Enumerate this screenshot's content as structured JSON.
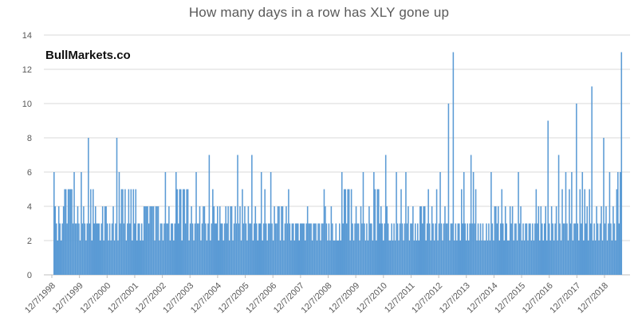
{
  "watermark": "BullMarkets.co",
  "colors": {
    "bar": "#5B9BD5",
    "gridline": "#D9D9D9",
    "axis_line": "#BFBFBF",
    "tick_mark": "#BFBFBF",
    "label_text": "#595959",
    "title_text": "#595959",
    "watermark_text": "#111111",
    "background": "#FFFFFF"
  },
  "chart_data": {
    "type": "bar",
    "title": "How many days in a row has XLY gone up",
    "xlabel": "",
    "ylabel": "",
    "ylim": [
      0,
      14
    ],
    "yticks": [
      0,
      2,
      4,
      6,
      8,
      10,
      12,
      14
    ],
    "grid": "horizontal",
    "legend": "none",
    "x_label_rotation_deg": 45,
    "x_tick_labels": [
      "12/7/1998",
      "12/7/1999",
      "12/7/2000",
      "12/7/2001",
      "12/7/2002",
      "12/7/2003",
      "12/7/2004",
      "12/7/2005",
      "12/7/2006",
      "12/7/2007",
      "12/7/2008",
      "12/7/2009",
      "12/7/2010",
      "12/7/2011",
      "12/7/2012",
      "12/7/2013",
      "12/7/2014",
      "12/7/2015",
      "12/7/2016",
      "12/7/2017",
      "12/7/2018"
    ],
    "notable_streaks": [
      {
        "approx_x": "early 2000",
        "days": 8
      },
      {
        "approx_x": "early 2001",
        "days": 8
      },
      {
        "approx_x": "late 2012",
        "days": 10
      },
      {
        "approx_x": "late 2012 / early 2013",
        "days": 13
      },
      {
        "approx_x": "2016",
        "days": 9
      },
      {
        "approx_x": "mid 2017",
        "days": 10
      },
      {
        "approx_x": "late 2017",
        "days": 11
      },
      {
        "approx_x": "early 2018",
        "days": 8
      },
      {
        "approx_x": "right edge of chart",
        "days": 13
      }
    ],
    "values": [
      6,
      4,
      3,
      2,
      4,
      3,
      2,
      3,
      4,
      5,
      5,
      3,
      5,
      5,
      5,
      5,
      3,
      6,
      3,
      3,
      4,
      3,
      2,
      6,
      3,
      4,
      3,
      2,
      3,
      8,
      3,
      5,
      2,
      5,
      3,
      4,
      3,
      3,
      3,
      2,
      3,
      4,
      2,
      4,
      4,
      3,
      2,
      3,
      2,
      3,
      4,
      2,
      3,
      8,
      2,
      6,
      3,
      5,
      5,
      3,
      5,
      2,
      3,
      5,
      3,
      5,
      2,
      5,
      3,
      5,
      2,
      3,
      3,
      2,
      3,
      2,
      4,
      4,
      4,
      4,
      3,
      4,
      4,
      4,
      4,
      2,
      4,
      4,
      4,
      2,
      3,
      3,
      2,
      3,
      6,
      3,
      3,
      4,
      2,
      3,
      3,
      2,
      3,
      6,
      5,
      3,
      5,
      5,
      2,
      5,
      5,
      3,
      5,
      5,
      2,
      3,
      4,
      3,
      2,
      3,
      6,
      3,
      3,
      4,
      2,
      3,
      4,
      4,
      3,
      2,
      3,
      7,
      2,
      3,
      5,
      4,
      3,
      3,
      4,
      2,
      4,
      3,
      3,
      2,
      3,
      4,
      3,
      4,
      2,
      4,
      4,
      2,
      3,
      4,
      3,
      7,
      3,
      4,
      2,
      5,
      3,
      4,
      3,
      2,
      4,
      3,
      3,
      7,
      2,
      3,
      4,
      3,
      2,
      3,
      3,
      6,
      2,
      3,
      5,
      3,
      2,
      3,
      3,
      6,
      3,
      2,
      4,
      3,
      3,
      4,
      4,
      2,
      4,
      4,
      2,
      3,
      4,
      3,
      5,
      3,
      2,
      3,
      3,
      2,
      3,
      3,
      3,
      2,
      3,
      3,
      3,
      3,
      2,
      3,
      4,
      3,
      3,
      3,
      2,
      3,
      3,
      3,
      2,
      3,
      3,
      2,
      3,
      3,
      5,
      4,
      3,
      2,
      3,
      2,
      4,
      3,
      2,
      2,
      3,
      2,
      2,
      3,
      2,
      6,
      3,
      5,
      5,
      3,
      5,
      5,
      2,
      5,
      3,
      2,
      3,
      4,
      3,
      3,
      2,
      4,
      3,
      6,
      3,
      2,
      3,
      2,
      4,
      3,
      3,
      2,
      6,
      5,
      2,
      5,
      5,
      3,
      4,
      3,
      2,
      3,
      7,
      4,
      3,
      2,
      2,
      3,
      2,
      3,
      2,
      6,
      3,
      2,
      3,
      5,
      3,
      2,
      3,
      6,
      3,
      4,
      2,
      3,
      3,
      4,
      2,
      3,
      2,
      3,
      2,
      4,
      4,
      3,
      4,
      4,
      2,
      3,
      5,
      3,
      2,
      4,
      3,
      2,
      3,
      5,
      2,
      3,
      6,
      3,
      2,
      3,
      4,
      3,
      3,
      10,
      2,
      3,
      3,
      13,
      2,
      3,
      2,
      3,
      3,
      2,
      5,
      3,
      6,
      3,
      2,
      3,
      2,
      3,
      7,
      3,
      6,
      3,
      5,
      2,
      3,
      2,
      3,
      2,
      3,
      2,
      2,
      3,
      2,
      3,
      2,
      6,
      3,
      2,
      4,
      4,
      3,
      4,
      2,
      3,
      5,
      3,
      2,
      4,
      3,
      2,
      2,
      4,
      3,
      4,
      2,
      3,
      3,
      2,
      6,
      3,
      4,
      2,
      3,
      2,
      3,
      3,
      2,
      3,
      3,
      2,
      3,
      2,
      3,
      5,
      3,
      4,
      2,
      4,
      3,
      2,
      3,
      4,
      2,
      9,
      3,
      2,
      4,
      3,
      2,
      3,
      4,
      2,
      7,
      3,
      2,
      5,
      3,
      3,
      6,
      3,
      2,
      5,
      3,
      6,
      2,
      3,
      3,
      10,
      3,
      2,
      5,
      3,
      6,
      2,
      5,
      3,
      4,
      2,
      5,
      3,
      11,
      2,
      3,
      2,
      4,
      3,
      2,
      3,
      4,
      2,
      8,
      3,
      4,
      2,
      3,
      6,
      3,
      2,
      4,
      3,
      2,
      5,
      6,
      3,
      6,
      13
    ]
  }
}
